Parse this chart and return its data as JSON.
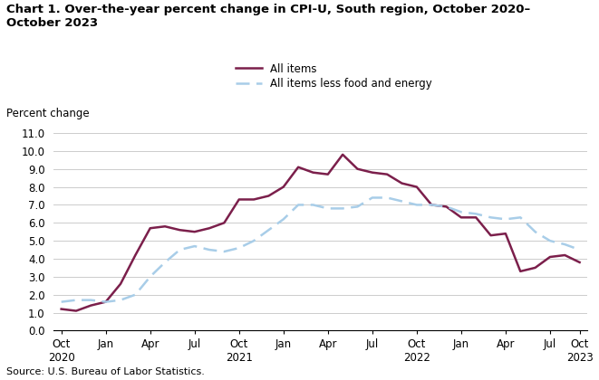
{
  "title_line1": "Chart 1. Over-the-year percent change in CPI-U, South region, October 2020–",
  "title_line2": "October 2023",
  "ylabel": "Percent change",
  "source": "Source: U.S. Bureau of Labor Statistics.",
  "ylim": [
    0.0,
    11.0
  ],
  "yticks": [
    0.0,
    1.0,
    2.0,
    3.0,
    4.0,
    5.0,
    6.0,
    7.0,
    8.0,
    9.0,
    10.0,
    11.0
  ],
  "all_items": [
    1.2,
    1.1,
    1.4,
    1.6,
    2.6,
    4.2,
    5.7,
    5.8,
    5.6,
    5.5,
    5.7,
    6.0,
    7.3,
    7.3,
    7.5,
    8.0,
    9.1,
    8.8,
    8.7,
    9.8,
    9.0,
    8.8,
    8.7,
    8.2,
    8.0,
    7.0,
    6.9,
    6.3,
    6.3,
    5.3,
    5.4,
    3.3,
    3.5,
    4.1,
    4.2,
    3.8
  ],
  "all_items_less": [
    1.6,
    1.7,
    1.7,
    1.6,
    1.7,
    2.0,
    3.0,
    3.8,
    4.5,
    4.7,
    4.5,
    4.4,
    4.6,
    5.0,
    5.6,
    6.2,
    7.0,
    7.0,
    6.8,
    6.8,
    6.9,
    7.4,
    7.4,
    7.2,
    7.0,
    7.0,
    6.9,
    6.6,
    6.5,
    6.3,
    6.2,
    6.3,
    5.5,
    5.0,
    4.8,
    4.5
  ],
  "all_items_color": "#7B1F4B",
  "all_items_less_color": "#A8CDE8",
  "tick_labels": [
    "Oct\n2020",
    "Jan",
    "Apr",
    "Jul",
    "Oct\n2021",
    "Jan",
    "Apr",
    "Jul",
    "Oct\n2022",
    "Jan",
    "Apr",
    "Jul",
    "Oct\n2023"
  ],
  "tick_positions": [
    0,
    3,
    6,
    9,
    12,
    15,
    18,
    21,
    24,
    27,
    30,
    33,
    35
  ]
}
